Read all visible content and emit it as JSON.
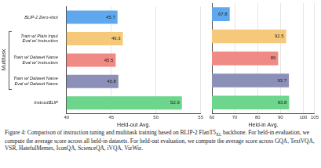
{
  "chart_data": [
    {
      "type": "bar",
      "orientation": "horizontal",
      "x_label": "Held-out Avg.",
      "categories": [
        "BLIP-2 Zero-shot",
        "Train w/ Plain Input\nEval w/ Instruction",
        "Train w/ Dataset Name\nEval w/ Instruction",
        "Train w/ Dataset Name\nEval w/ Dataset Name",
        "InstructBLIP"
      ],
      "values": [
        45.7,
        46.3,
        45.5,
        45.8,
        52.9
      ],
      "colors": [
        "#5fa8ee",
        "#f6c97a",
        "#f08a84",
        "#8c90b8",
        "#6dd58c"
      ],
      "xlim": [
        40,
        55
      ],
      "xticks": [
        40,
        45,
        50,
        55
      ],
      "grid": true,
      "data_labels": true,
      "group_label": "Multitask"
    },
    {
      "type": "bar",
      "orientation": "horizontal",
      "x_label": "Held-in Avg.",
      "categories": [
        "BLIP-2 Zero-shot",
        "Train w/ Plain Input\nEval w/ Instruction",
        "Train w/ Dataset Name\nEval w/ Instruction",
        "Train w/ Dataset Name\nEval w/ Dataset Name",
        "InstructBLIP"
      ],
      "values": [
        67.8,
        92.5,
        89.0,
        93.7,
        93.8
      ],
      "colors": [
        "#5fa8ee",
        "#f6c97a",
        "#f08a84",
        "#8c90b8",
        "#6dd58c"
      ],
      "xlim": [
        60,
        105
      ],
      "xticks": [
        60,
        70,
        80,
        90,
        100,
        105
      ],
      "grid": true,
      "data_labels": true,
      "tick_labels": "x"
    }
  ],
  "caption": {
    "before": "Figure 4: Comparison of instruction tuning and multitask training based on BLIP-2 FlanT5",
    "subscript": "XL",
    "after": " backbone. For held-in evaluation, we compute the average score across all held-in datasets. For held-out evaluation, we compute the average score across GQA, TextVQA, VSR, HatefulMemes, IconQA, ScienceQA, iVQA, VizWiz."
  }
}
